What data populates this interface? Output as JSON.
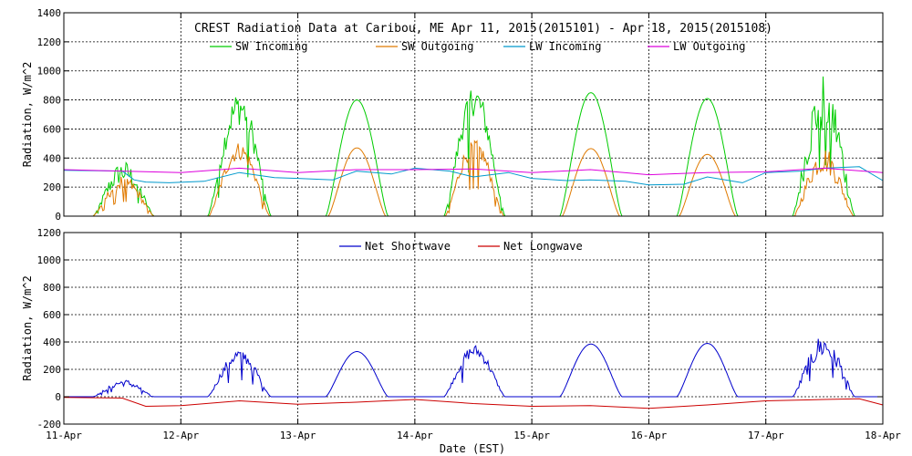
{
  "chart_data": {
    "type": "line",
    "title": "CREST Radiation Data at Caribou, ME   Apr 11, 2015(2015101) - Apr 18, 2015(2015108)",
    "xlabel": "Date (EST)",
    "x_ticks": [
      "11-Apr",
      "12-Apr",
      "13-Apr",
      "14-Apr",
      "15-Apr",
      "16-Apr",
      "17-Apr",
      "18-Apr"
    ],
    "panels": [
      {
        "ylabel": "Radiation, W/m^2",
        "ylim": [
          0,
          1400
        ],
        "yticks": [
          0,
          200,
          400,
          600,
          800,
          1000,
          1200,
          1400
        ],
        "grid": true,
        "legend_position": "top",
        "series": [
          {
            "name": "SW Incoming",
            "color": "#00cc00",
            "days": [
              {
                "day": 0,
                "start": 0.25,
                "end": 0.77,
                "peak": 330,
                "noise": 0.55
              },
              {
                "day": 1,
                "start": 0.23,
                "end": 0.77,
                "peak": 790,
                "noise": 0.35
              },
              {
                "day": 2,
                "start": 0.24,
                "end": 0.77,
                "peak": 800,
                "noise": 0.0
              },
              {
                "day": 3,
                "start": 0.25,
                "end": 0.77,
                "peak": 840,
                "noise": 0.3
              },
              {
                "day": 4,
                "start": 0.24,
                "end": 0.77,
                "peak": 850,
                "noise": 0.0
              },
              {
                "day": 5,
                "start": 0.24,
                "end": 0.76,
                "peak": 810,
                "noise": 0.0
              },
              {
                "day": 6,
                "start": 0.23,
                "end": 0.76,
                "peak": 860,
                "noise": 0.6
              }
            ]
          },
          {
            "name": "SW Outgoing",
            "color": "#e07a00",
            "days": [
              {
                "day": 0,
                "start": 0.25,
                "end": 0.77,
                "peak": 250,
                "noise": 0.45
              },
              {
                "day": 1,
                "start": 0.24,
                "end": 0.76,
                "peak": 470,
                "noise": 0.3
              },
              {
                "day": 2,
                "start": 0.26,
                "end": 0.75,
                "peak": 470,
                "noise": 0.0
              },
              {
                "day": 3,
                "start": 0.26,
                "end": 0.76,
                "peak": 500,
                "noise": 0.3
              },
              {
                "day": 4,
                "start": 0.26,
                "end": 0.75,
                "peak": 465,
                "noise": 0.0
              },
              {
                "day": 5,
                "start": 0.26,
                "end": 0.74,
                "peak": 425,
                "noise": 0.0
              },
              {
                "day": 6,
                "start": 0.24,
                "end": 0.75,
                "peak": 420,
                "noise": 0.5
              }
            ]
          },
          {
            "name": "LW Incoming",
            "color": "#0099cc",
            "x": [
              0,
              0.5,
              0.6,
              0.7,
              0.9,
              1.2,
              1.5,
              1.8,
              2.0,
              2.3,
              2.5,
              2.8,
              3.0,
              3.3,
              3.5,
              3.8,
              4.0,
              4.3,
              4.5,
              4.8,
              5.0,
              5.3,
              5.5,
              5.8,
              6.0,
              6.3,
              6.5,
              6.8,
              7.0
            ],
            "y": [
              315,
              310,
              250,
              235,
              230,
              240,
              300,
              265,
              260,
              250,
              310,
              290,
              330,
              310,
              270,
              300,
              260,
              245,
              250,
              240,
              215,
              220,
              270,
              230,
              300,
              310,
              330,
              340,
              245
            ]
          },
          {
            "name": "LW Outgoing",
            "color": "#dd00dd",
            "x": [
              0,
              0.5,
              1.0,
              1.5,
              2.0,
              2.5,
              3.0,
              3.5,
              4.0,
              4.5,
              5.0,
              5.5,
              6.0,
              6.5,
              7.0
            ],
            "y": [
              320,
              310,
              300,
              330,
              300,
              320,
              320,
              325,
              300,
              320,
              285,
              300,
              305,
              330,
              300
            ]
          }
        ]
      },
      {
        "ylabel": "Radiation, W/m^2",
        "ylim": [
          -200,
          1200
        ],
        "yticks": [
          -200,
          0,
          200,
          400,
          600,
          800,
          1000,
          1200
        ],
        "grid": true,
        "legend_position": "top",
        "series": [
          {
            "name": "Net Shortwave",
            "color": "#0000cc",
            "days": [
              {
                "day": 0,
                "start": 0.25,
                "end": 0.77,
                "peak": 110,
                "noise": 0.5
              },
              {
                "day": 1,
                "start": 0.23,
                "end": 0.77,
                "peak": 320,
                "noise": 0.35
              },
              {
                "day": 2,
                "start": 0.24,
                "end": 0.77,
                "peak": 330,
                "noise": 0.0
              },
              {
                "day": 3,
                "start": 0.25,
                "end": 0.77,
                "peak": 350,
                "noise": 0.3
              },
              {
                "day": 4,
                "start": 0.24,
                "end": 0.77,
                "peak": 385,
                "noise": 0.0
              },
              {
                "day": 5,
                "start": 0.24,
                "end": 0.76,
                "peak": 390,
                "noise": 0.0
              },
              {
                "day": 6,
                "start": 0.23,
                "end": 0.76,
                "peak": 400,
                "noise": 0.55
              }
            ]
          },
          {
            "name": "Net Longwave",
            "color": "#cc0000",
            "x": [
              0,
              0.5,
              0.7,
              1.0,
              1.5,
              2.0,
              2.5,
              3.0,
              3.5,
              4.0,
              4.5,
              5.0,
              5.5,
              6.0,
              6.5,
              6.8,
              7.0
            ],
            "y": [
              -5,
              -10,
              -70,
              -65,
              -30,
              -55,
              -40,
              -20,
              -50,
              -70,
              -65,
              -85,
              -60,
              -30,
              -20,
              -15,
              -60
            ]
          }
        ]
      }
    ]
  }
}
